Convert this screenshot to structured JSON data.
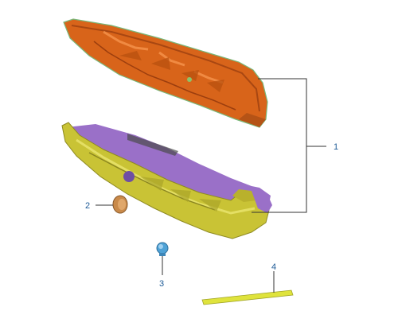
{
  "callouts": {
    "c1": "1",
    "c2": "2",
    "c3": "3",
    "c4": "4"
  },
  "parts": {
    "upper_shield": {
      "icon": "upper-heat-shield",
      "color": "#d8641a"
    },
    "lower_shield": {
      "icon": "lower-heat-shield",
      "color": "#c9c335",
      "inner_color": "#9a70c8"
    },
    "grommet": {
      "icon": "grommet",
      "color": "#c98a4a"
    },
    "push_clip": {
      "icon": "push-clip",
      "color": "#4fa2d6"
    },
    "strip": {
      "icon": "seal-strip",
      "color": "#dfe33c"
    }
  },
  "colors": {
    "leader_line": "#333333",
    "callout_text": "#1d5a96"
  }
}
